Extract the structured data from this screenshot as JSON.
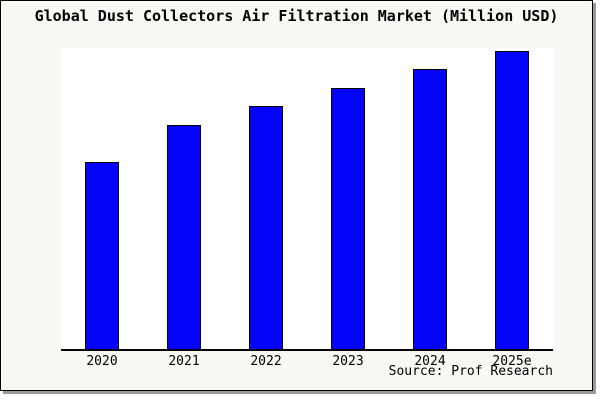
{
  "title": "Global Dust Collectors Air Filtration Market (Million USD)",
  "source_note": "Source: Prof Research",
  "colors": {
    "figure_background": "#F8F8F5",
    "plot_background": "#FFFFFF",
    "bar_fill": "#0404F8",
    "bar_edge": "#000000",
    "axis_line": "#000000",
    "frame_border": "#000000",
    "frame_shadow": "#9A9A9A",
    "text": "#000000"
  },
  "chart_data": {
    "type": "bar",
    "title": "Global Dust Collectors Air Filtration Market (Million USD)",
    "categories": [
      "2020",
      "2021",
      "2022",
      "2023",
      "2024",
      "2025e"
    ],
    "values": [
      62.9,
      75.1,
      81.6,
      87.7,
      93.8,
      100
    ],
    "values_unit": "relative index estimated from bar heights (2025e = 100); y-axis has no tick labels in the image",
    "xlabel": "",
    "ylabel": "",
    "ylim": [
      0,
      101
    ],
    "grid": false,
    "legend": false,
    "y_axis_ticks": "none",
    "spines_visible": [
      "bottom"
    ],
    "annotations": [
      "Source: Prof Research"
    ]
  }
}
